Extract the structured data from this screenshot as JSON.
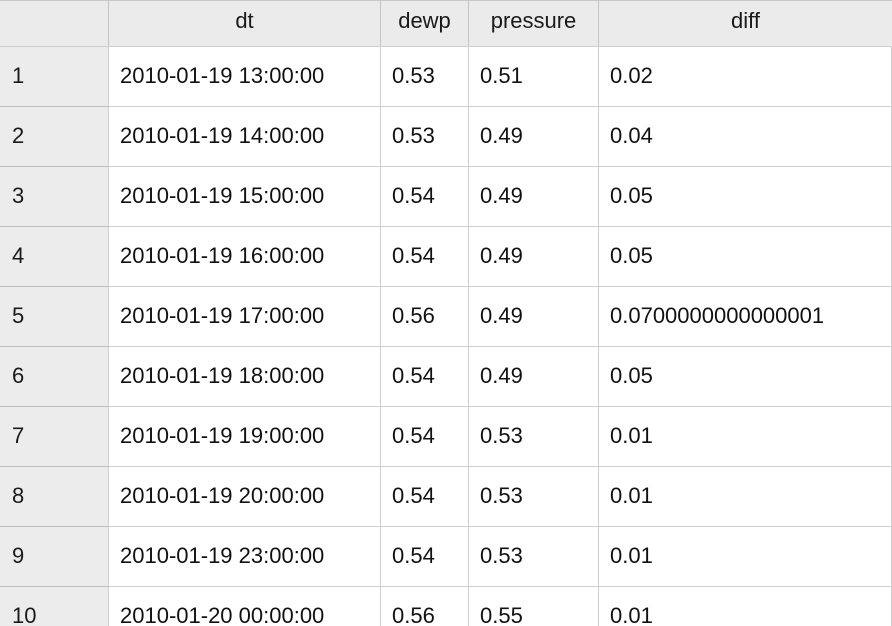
{
  "table": {
    "columns": [
      "",
      "dt",
      "dewp",
      "pressure",
      "diff"
    ],
    "rows": [
      {
        "index": "1",
        "dt": "2010-01-19 13:00:00",
        "dewp": "0.53",
        "pressure": "0.51",
        "diff": "0.02"
      },
      {
        "index": "2",
        "dt": "2010-01-19 14:00:00",
        "dewp": "0.53",
        "pressure": "0.49",
        "diff": "0.04"
      },
      {
        "index": "3",
        "dt": "2010-01-19 15:00:00",
        "dewp": "0.54",
        "pressure": "0.49",
        "diff": "0.05"
      },
      {
        "index": "4",
        "dt": "2010-01-19 16:00:00",
        "dewp": "0.54",
        "pressure": "0.49",
        "diff": "0.05"
      },
      {
        "index": "5",
        "dt": "2010-01-19 17:00:00",
        "dewp": "0.56",
        "pressure": "0.49",
        "diff": "0.0700000000000001"
      },
      {
        "index": "6",
        "dt": "2010-01-19 18:00:00",
        "dewp": "0.54",
        "pressure": "0.49",
        "diff": "0.05"
      },
      {
        "index": "7",
        "dt": "2010-01-19 19:00:00",
        "dewp": "0.54",
        "pressure": "0.53",
        "diff": "0.01"
      },
      {
        "index": "8",
        "dt": "2010-01-19 20:00:00",
        "dewp": "0.54",
        "pressure": "0.53",
        "diff": "0.01"
      },
      {
        "index": "9",
        "dt": "2010-01-19 23:00:00",
        "dewp": "0.54",
        "pressure": "0.53",
        "diff": "0.01"
      },
      {
        "index": "10",
        "dt": "2010-01-20 00:00:00",
        "dewp": "0.56",
        "pressure": "0.55",
        "diff": "0.01"
      }
    ]
  }
}
